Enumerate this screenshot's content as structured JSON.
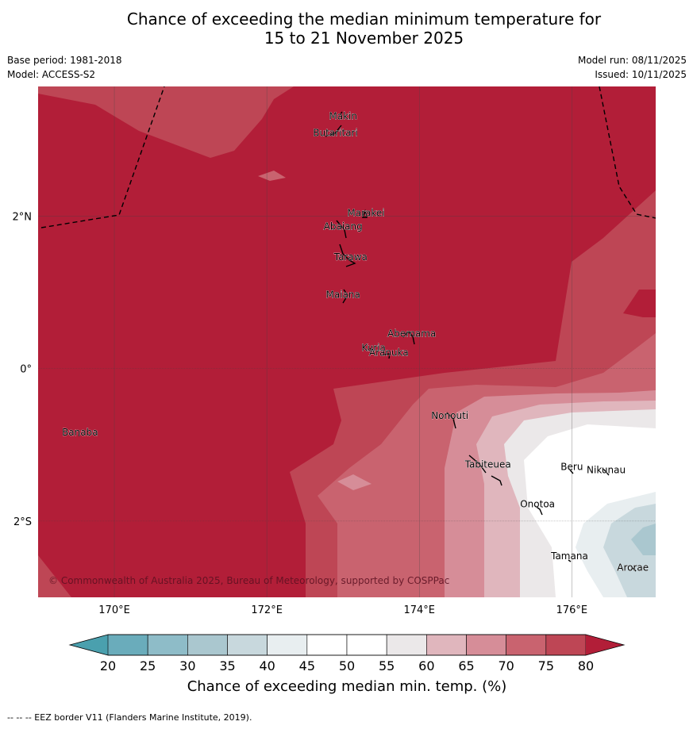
{
  "title": {
    "line1": "Chance of exceeding the median minimum temperature for",
    "line2": "15 to 21 November 2025"
  },
  "meta": {
    "base_period": "Base period: 1981-2018",
    "model": "Model: ACCESS-S2",
    "model_run": "Model run: 08/11/2025",
    "issued": "Issued: 10/11/2025"
  },
  "map": {
    "lon_range": [
      169,
      177.1
    ],
    "lat_range": [
      -3.0,
      3.7
    ],
    "x_ticks": [
      {
        "value": 170,
        "label": "170°E"
      },
      {
        "value": 172,
        "label": "172°E"
      },
      {
        "value": 174,
        "label": "174°E"
      },
      {
        "value": 176,
        "label": "176°E"
      }
    ],
    "y_ticks": [
      {
        "value": 2,
        "label": "2°N"
      },
      {
        "value": 0,
        "label": "0°"
      },
      {
        "value": -2,
        "label": "2°S"
      }
    ],
    "islands": [
      {
        "name": "Makin",
        "lon": 173.0,
        "lat": 3.27
      },
      {
        "name": "Butaritari",
        "lon": 172.9,
        "lat": 3.05
      },
      {
        "name": "Marakei",
        "lon": 173.3,
        "lat": 2.0
      },
      {
        "name": "Abaiang",
        "lon": 173.0,
        "lat": 1.82
      },
      {
        "name": "Tarawa",
        "lon": 173.1,
        "lat": 1.42
      },
      {
        "name": "Maiana",
        "lon": 173.0,
        "lat": 0.93
      },
      {
        "name": "Abemama",
        "lon": 173.9,
        "lat": 0.42
      },
      {
        "name": "Kuria",
        "lon": 173.4,
        "lat": 0.23
      },
      {
        "name": "Aranuka",
        "lon": 173.6,
        "lat": 0.17
      },
      {
        "name": "Nonouti",
        "lon": 174.4,
        "lat": -0.66
      },
      {
        "name": "Banaba",
        "lon": 169.55,
        "lat": -0.88
      },
      {
        "name": "Tabiteuea",
        "lon": 174.9,
        "lat": -1.3
      },
      {
        "name": "Beru",
        "lon": 176.0,
        "lat": -1.33
      },
      {
        "name": "Nikunau",
        "lon": 176.45,
        "lat": -1.37
      },
      {
        "name": "Onotoa",
        "lon": 175.55,
        "lat": -1.82
      },
      {
        "name": "Tamana",
        "lon": 175.97,
        "lat": -2.5
      },
      {
        "name": "Arorae",
        "lon": 176.8,
        "lat": -2.65
      }
    ],
    "copyright": "© Commonwealth of Australia 2025, Bureau of Meteorology, supported by COSPPac"
  },
  "legend": {
    "title": "Chance of exceeding median min. temp. (%)",
    "ticks": [
      "20",
      "25",
      "30",
      "35",
      "40",
      "45",
      "50",
      "55",
      "60",
      "65",
      "70",
      "75",
      "80"
    ],
    "colors": [
      "#6aacbb",
      "#8ebcc8",
      "#aac7cf",
      "#c8d8dd",
      "#e8eef0",
      "#ffffff",
      "#ffffff",
      "#ebe8e9",
      "#e0b6bd",
      "#d68d98",
      "#c9636f",
      "#be4655"
    ],
    "under_color": "#4aa0ae",
    "over_color": "#b21e38"
  },
  "footer": {
    "eez_note": "--  --  -- EEZ border V11 (Flanders Marine Institute, 2019)."
  }
}
